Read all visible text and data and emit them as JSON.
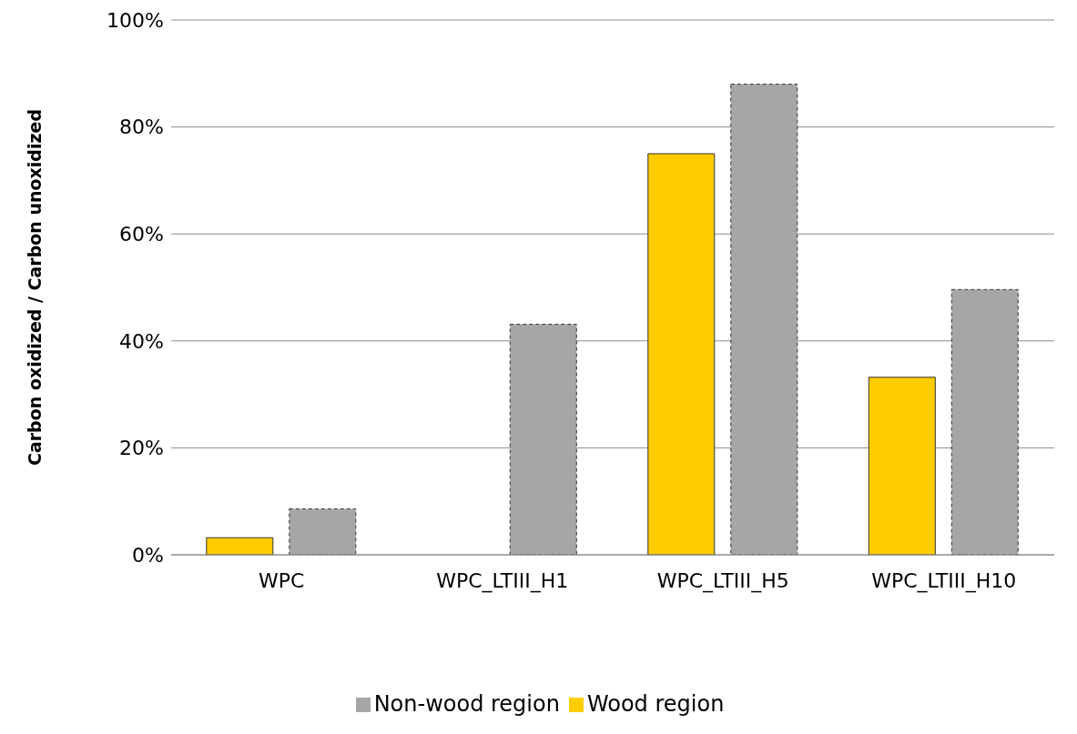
{
  "chart_data": {
    "type": "bar",
    "ylabel": "Carbon oxidized / Carbon unoxidized",
    "categories": [
      "WPC",
      "WPC_LTIII_H1",
      "WPC_LTIII_H5",
      "WPC_LTIII_H10"
    ],
    "series": [
      {
        "name": "Wood region",
        "color": "#ffcc00",
        "values": [
          3.2,
          null,
          75,
          33.2
        ]
      },
      {
        "name": "Non-wood region",
        "color": "#a6a6a6",
        "line_style": "dashed",
        "values": [
          8.6,
          43.1,
          88,
          49.6
        ]
      }
    ],
    "ylim": [
      0,
      100
    ],
    "yticks": [
      {
        "value": 0,
        "label": "0%"
      },
      {
        "value": 20,
        "label": "20%"
      },
      {
        "value": 40,
        "label": "40%"
      },
      {
        "value": 60,
        "label": "60%"
      },
      {
        "value": 80,
        "label": "80%"
      },
      {
        "value": 100,
        "label": "100%"
      }
    ],
    "grid": "y",
    "legend": "bottom"
  }
}
